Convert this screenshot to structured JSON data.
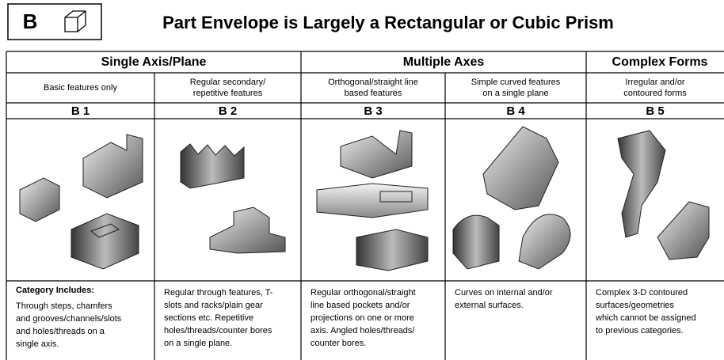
{
  "header": {
    "code": "B",
    "title": "Part Envelope is Largely a Rectangular or Cubic Prism"
  },
  "table": {
    "groups": [
      "Single Axis/Plane",
      "Multiple Axes",
      "Complex Forms"
    ],
    "category_heading": "Category Includes:",
    "columns": [
      {
        "description": [
          "Basic features only"
        ],
        "code": "B 1",
        "includes": [
          "Through steps, chamfers",
          "and grooves/channels/slots",
          "and holes/threads on a",
          "single axis."
        ]
      },
      {
        "description": [
          "Regular secondary/",
          "repetitive features"
        ],
        "code": "B 2",
        "includes": [
          "Regular through features, T-",
          "slots and racks/plain gear",
          "sections etc. Repetitive",
          "holes/threads/counter bores",
          "on a single plane."
        ]
      },
      {
        "description": [
          "Orthogonal/straight line",
          "based features"
        ],
        "code": "B 3",
        "includes": [
          "Regular orthogonal/straight",
          "line based pockets and/or",
          "projections on one or more",
          "axis. Angled holes/threads/",
          "counter bores."
        ]
      },
      {
        "description": [
          "Simple curved features",
          "on a single plane"
        ],
        "code": "B 4",
        "includes": [
          "Curves on internal and/or",
          "external surfaces."
        ]
      },
      {
        "description": [
          "Irregular and/or",
          "contoured forms"
        ],
        "code": "B 5",
        "includes": [
          "Complex 3-D contoured",
          "surfaces/geometries",
          "which cannot be assigned",
          "to previous categories."
        ]
      }
    ]
  }
}
